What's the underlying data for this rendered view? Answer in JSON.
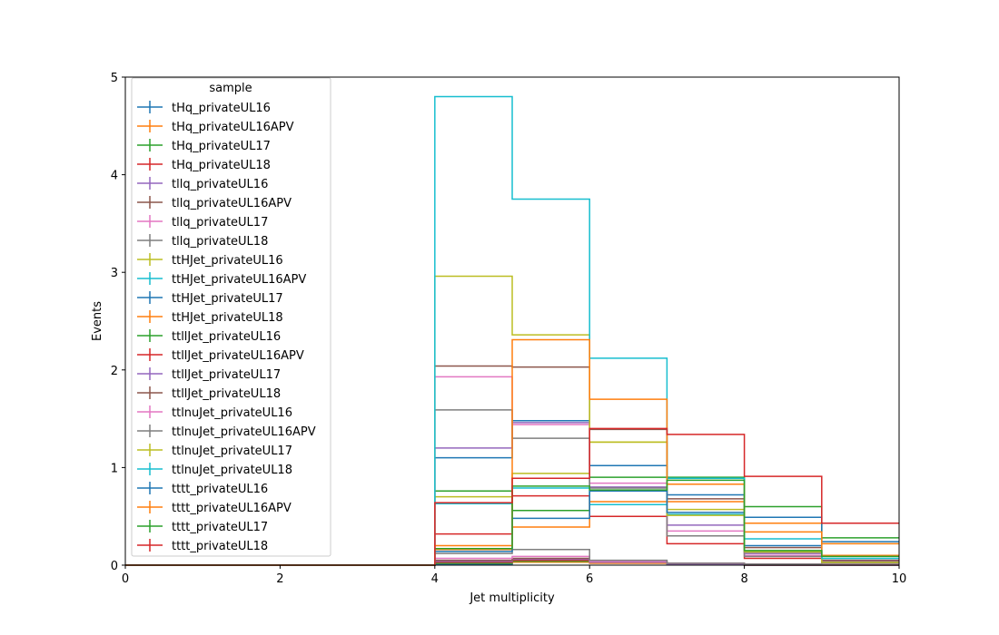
{
  "chart_data": {
    "type": "step",
    "title": "",
    "xlabel": "Jet multiplicity",
    "ylabel": "Events",
    "xlim": [
      0,
      10
    ],
    "ylim": [
      0,
      5
    ],
    "x_ticks": [
      "0",
      "2",
      "4",
      "6",
      "8",
      "10"
    ],
    "y_ticks": [
      "0",
      "1",
      "2",
      "3",
      "4",
      "5"
    ],
    "bin_edges": [
      0,
      1,
      2,
      3,
      4,
      5,
      6,
      7,
      8,
      9,
      10
    ],
    "legend": {
      "title": "sample",
      "placement": "upper-left"
    },
    "series": [
      {
        "name": "tHq_privateUL16",
        "color": "#1f77b4",
        "values": [
          0,
          0,
          0,
          0,
          0.01,
          0.03,
          0.02,
          0.01,
          0.0,
          0.0
        ]
      },
      {
        "name": "tHq_privateUL16APV",
        "color": "#ff7f0e",
        "values": [
          0,
          0,
          0,
          0,
          0.02,
          0.03,
          0.02,
          0.01,
          0.0,
          0.0
        ]
      },
      {
        "name": "tHq_privateUL17",
        "color": "#2ca02c",
        "values": [
          0,
          0,
          0,
          0,
          0.02,
          0.04,
          0.03,
          0.01,
          0.0,
          0.0
        ]
      },
      {
        "name": "tHq_privateUL18",
        "color": "#d62728",
        "values": [
          0,
          0,
          0,
          0,
          0.03,
          0.05,
          0.03,
          0.02,
          0.0,
          0.0
        ]
      },
      {
        "name": "tllq_privateUL16",
        "color": "#9467bd",
        "values": [
          0,
          0,
          0,
          0,
          0.04,
          0.06,
          0.03,
          0.01,
          0.0,
          0.0
        ]
      },
      {
        "name": "tllq_privateUL16APV",
        "color": "#8c564b",
        "values": [
          0,
          0,
          0,
          0,
          0.05,
          0.07,
          0.04,
          0.02,
          0.01,
          0.0
        ]
      },
      {
        "name": "tllq_privateUL17",
        "color": "#e377c2",
        "values": [
          0,
          0,
          0,
          0,
          0.07,
          0.09,
          0.04,
          0.02,
          0.01,
          0.0
        ]
      },
      {
        "name": "tllq_privateUL18",
        "color": "#7f7f7f",
        "values": [
          0,
          0,
          0,
          0,
          0.12,
          0.16,
          0.05,
          0.02,
          0.01,
          0.0
        ]
      },
      {
        "name": "ttHJet_privateUL16",
        "color": "#bcbd22",
        "values": [
          0,
          0,
          0,
          0,
          0.7,
          0.94,
          1.26,
          0.57,
          0.13,
          0.02
        ]
      },
      {
        "name": "ttHJet_privateUL16APV",
        "color": "#17becf",
        "values": [
          0,
          0,
          0,
          0,
          0.63,
          0.79,
          0.62,
          0.52,
          0.14,
          0.03
        ]
      },
      {
        "name": "ttHJet_privateUL17",
        "color": "#1f77b4",
        "values": [
          0,
          0,
          0,
          0,
          1.1,
          1.48,
          1.02,
          0.72,
          0.2,
          0.05
        ]
      },
      {
        "name": "ttHJet_privateUL18",
        "color": "#ff7f0e",
        "values": [
          0,
          0,
          0,
          0,
          0.16,
          0.39,
          0.65,
          0.65,
          0.43,
          0.22
        ]
      },
      {
        "name": "ttllJet_privateUL16",
        "color": "#2ca02c",
        "values": [
          0,
          0,
          0,
          0,
          0.76,
          0.56,
          0.9,
          0.9,
          0.6,
          0.28
        ]
      },
      {
        "name": "ttllJet_privateUL16APV",
        "color": "#d62728",
        "values": [
          0,
          0,
          0,
          0,
          0.32,
          0.71,
          0.5,
          0.22,
          0.07,
          0.02
        ]
      },
      {
        "name": "ttllJet_privateUL17",
        "color": "#9467bd",
        "values": [
          0,
          0,
          0,
          0,
          1.2,
          1.46,
          0.8,
          0.41,
          0.12,
          0.04
        ]
      },
      {
        "name": "ttllJet_privateUL18",
        "color": "#8c564b",
        "values": [
          0,
          0,
          0,
          0,
          2.04,
          2.03,
          1.39,
          0.68,
          0.18,
          0.05
        ]
      },
      {
        "name": "ttlnuJet_privateUL16",
        "color": "#e377c2",
        "values": [
          0,
          0,
          0,
          0,
          1.93,
          1.44,
          0.84,
          0.35,
          0.1,
          0.02
        ]
      },
      {
        "name": "ttlnuJet_privateUL16APV",
        "color": "#7f7f7f",
        "values": [
          0,
          0,
          0,
          0,
          1.59,
          1.3,
          0.79,
          0.3,
          0.09,
          0.02
        ]
      },
      {
        "name": "ttlnuJet_privateUL17",
        "color": "#bcbd22",
        "values": [
          0,
          0,
          0,
          0,
          2.96,
          2.36,
          1.26,
          0.51,
          0.14,
          0.03
        ]
      },
      {
        "name": "ttlnuJet_privateUL18",
        "color": "#17becf",
        "values": [
          0,
          0,
          0,
          0,
          4.8,
          3.75,
          2.12,
          0.89,
          0.27,
          0.07
        ]
      },
      {
        "name": "tttt_privateUL16",
        "color": "#1f77b4",
        "values": [
          0,
          0,
          0,
          0,
          0.14,
          0.48,
          0.76,
          0.54,
          0.49,
          0.24
        ]
      },
      {
        "name": "tttt_privateUL16APV",
        "color": "#ff7f0e",
        "values": [
          0,
          0,
          0,
          0,
          0.2,
          2.31,
          1.7,
          0.83,
          0.34,
          0.1
        ]
      },
      {
        "name": "tttt_privateUL17",
        "color": "#2ca02c",
        "values": [
          0,
          0,
          0,
          0,
          0.17,
          0.81,
          0.77,
          0.87,
          0.15,
          0.09
        ]
      },
      {
        "name": "tttt_privateUL18",
        "color": "#d62728",
        "values": [
          0,
          0,
          0,
          0,
          0.64,
          0.89,
          1.4,
          1.34,
          0.91,
          0.43
        ]
      }
    ]
  }
}
